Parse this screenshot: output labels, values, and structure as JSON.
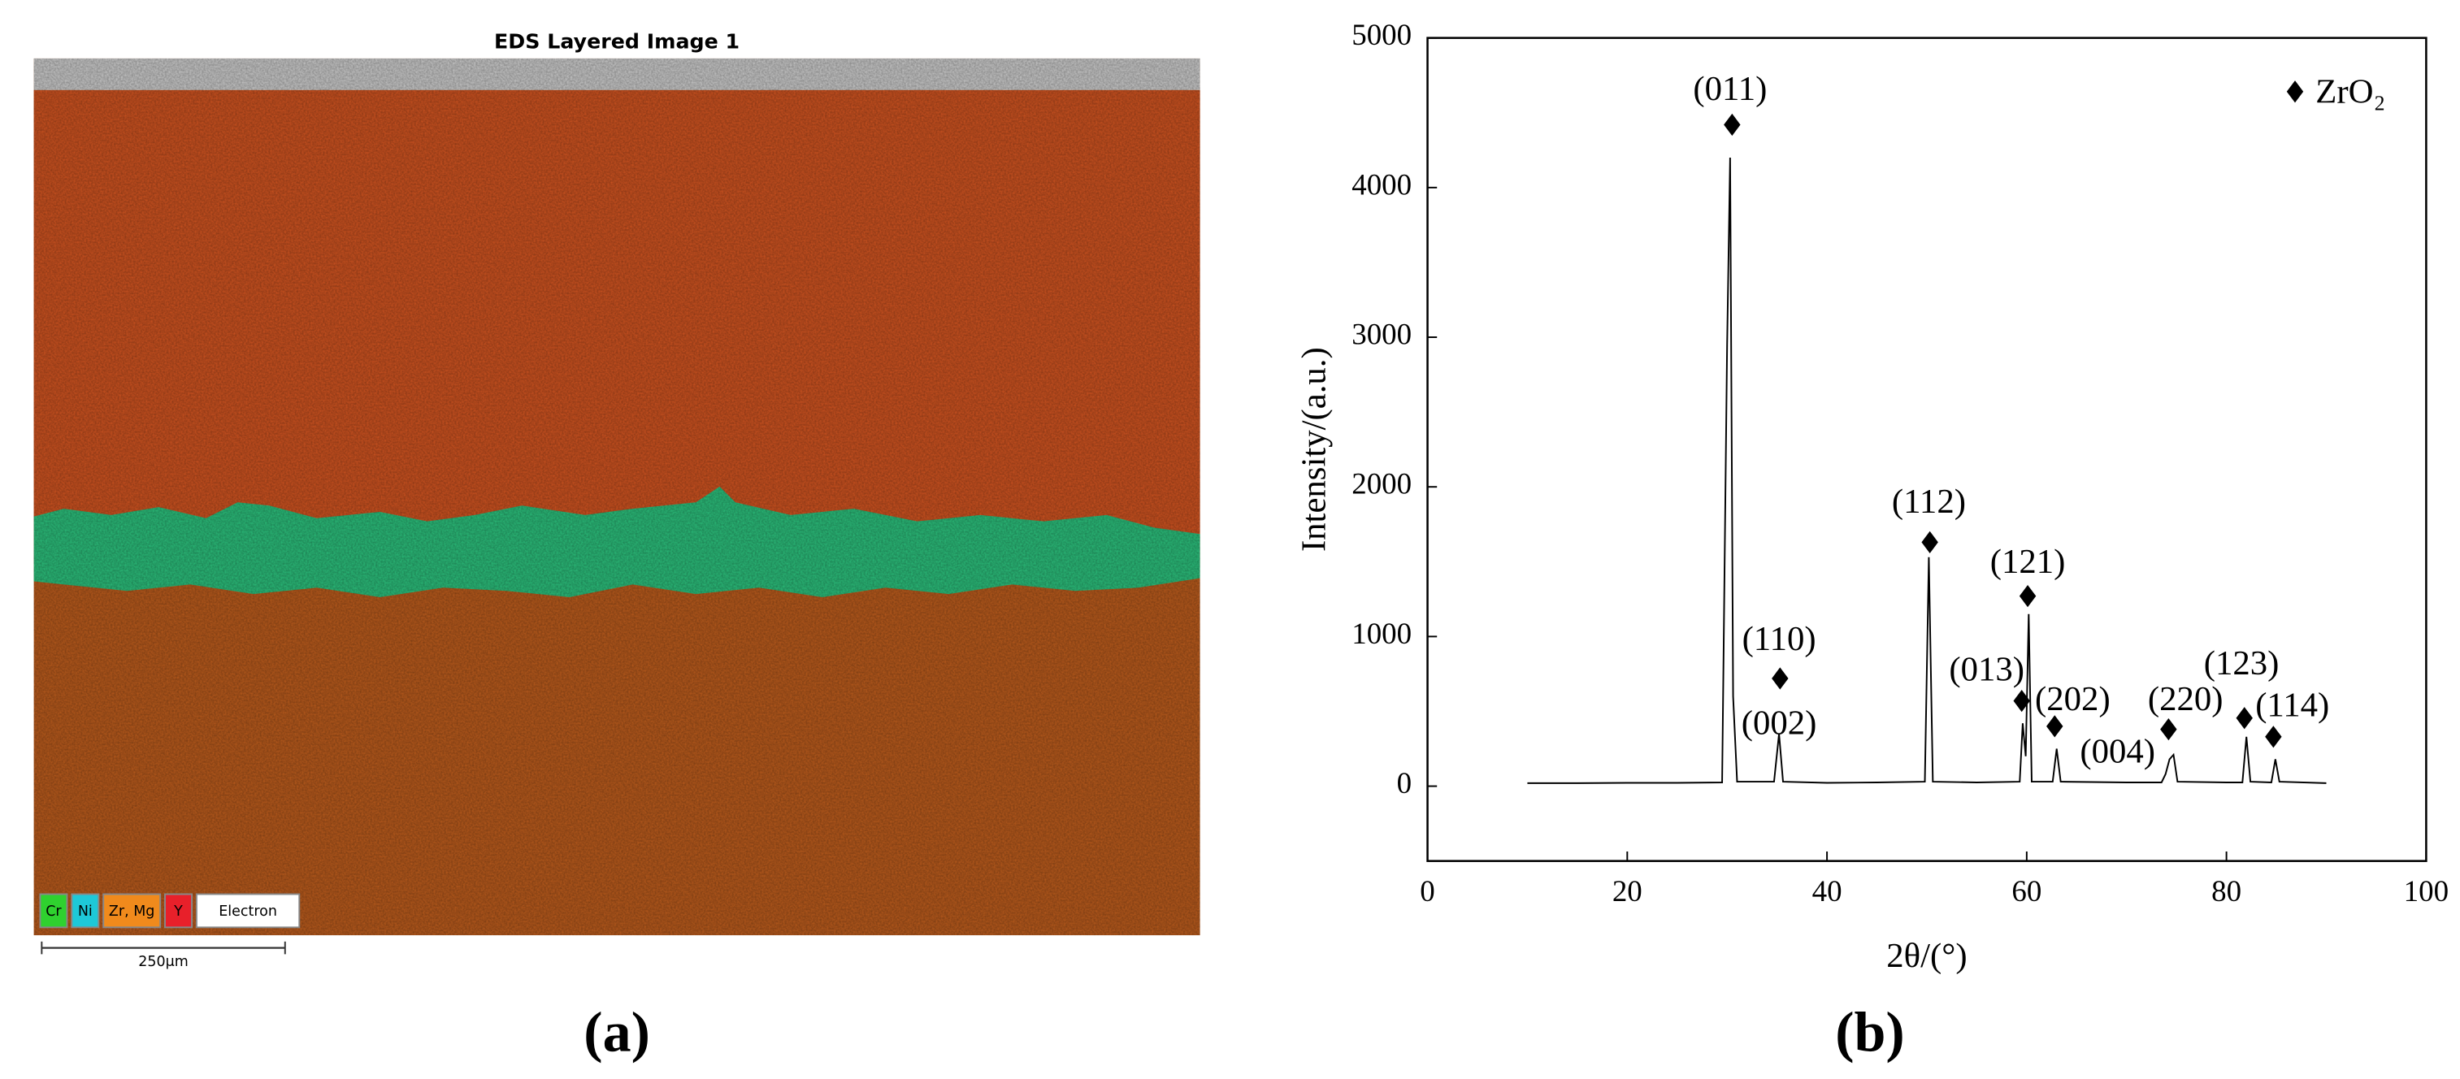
{
  "eds_image": {
    "title": "EDS Layered Image 1",
    "legend": [
      "Cr",
      "Ni",
      "Zr, Mg",
      "Y",
      "Electron"
    ],
    "scale_bar": "250μm"
  },
  "panel_labels": [
    "(a)",
    "(b)"
  ],
  "chart_data": {
    "type": "line",
    "xlabel": "2θ/(°)",
    "ylabel": "Intensity/(a.u.)",
    "x": [
      10,
      15,
      20,
      25,
      29.5,
      30.0,
      30.3,
      30.6,
      31,
      34.7,
      35.2,
      35.6,
      40,
      45,
      49.8,
      50.2,
      50.6,
      55,
      59.3,
      59.6,
      59.9,
      60.2,
      60.5,
      62.6,
      63,
      63.4,
      70,
      73.5,
      73.9,
      74.3,
      74.7,
      75.1,
      80,
      81.6,
      82,
      82.4,
      84.5,
      84.9,
      85.3,
      90
    ],
    "values": [
      20,
      20,
      22,
      22,
      25,
      2950,
      4200,
      600,
      30,
      30,
      350,
      30,
      22,
      25,
      30,
      1530,
      30,
      25,
      30,
      420,
      200,
      1150,
      30,
      30,
      250,
      30,
      25,
      25,
      80,
      180,
      210,
      30,
      25,
      25,
      330,
      30,
      25,
      180,
      30,
      20
    ],
    "color": "#000000",
    "markers": {
      "name": "ZrO₂",
      "color": "#000000",
      "x": [
        30.5,
        35.3,
        50.3,
        60.1,
        59.5,
        62.8,
        74.2,
        81.8,
        84.7
      ],
      "y": [
        4420,
        720,
        1630,
        1270,
        570,
        400,
        380,
        455,
        330
      ]
    },
    "annotations": [
      {
        "text": "(011)",
        "x": 30.3,
        "y": 4640
      },
      {
        "text": "(110)",
        "x": 35.2,
        "y": 962
      },
      {
        "text": "(002)",
        "x": 35.2,
        "y": 400
      },
      {
        "text": "(112)",
        "x": 50.2,
        "y": 1880
      },
      {
        "text": "(121)",
        "x": 60.1,
        "y": 1480
      },
      {
        "text": "(013)",
        "x": 56.0,
        "y": 760
      },
      {
        "text": "(202)",
        "x": 64.6,
        "y": 560
      },
      {
        "text": "(004)",
        "x": 69.1,
        "y": 210
      },
      {
        "text": "(220)",
        "x": 75.9,
        "y": 560
      },
      {
        "text": "(123)",
        "x": 81.5,
        "y": 800
      },
      {
        "text": "(114)",
        "x": 86.6,
        "y": 520
      }
    ],
    "legend": "upper right",
    "xlim": [
      0,
      100
    ],
    "xticks": [
      0,
      20,
      40,
      60,
      80,
      100
    ],
    "ylim": [
      -500,
      5000
    ],
    "yticks": [
      0,
      1000,
      2000,
      3000,
      4000,
      5000
    ]
  }
}
